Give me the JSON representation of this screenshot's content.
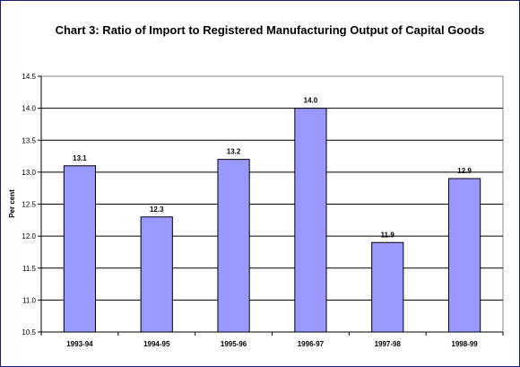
{
  "chart_data": {
    "type": "bar",
    "title": "Chart 3: Ratio of Import to Registered Manufacturing Output of Capital Goods",
    "xlabel": "",
    "ylabel": "Per cent",
    "categories": [
      "1993-94",
      "1994-95",
      "1995-96",
      "1996-97",
      "1997-98",
      "1998-99"
    ],
    "values": [
      13.1,
      12.3,
      13.2,
      14.0,
      11.9,
      12.9
    ],
    "data_labels": [
      "13.1",
      "12.3",
      "13.2",
      "14.0",
      "11.9",
      "12.9"
    ],
    "ylim": [
      10.5,
      14.5
    ],
    "yticks": [
      "10.5",
      "11.0",
      "11.5",
      "12.0",
      "12.5",
      "13.0",
      "13.5",
      "14.0",
      "14.5"
    ],
    "grid": true,
    "bar_color": "#9999ff",
    "legend": "none"
  }
}
